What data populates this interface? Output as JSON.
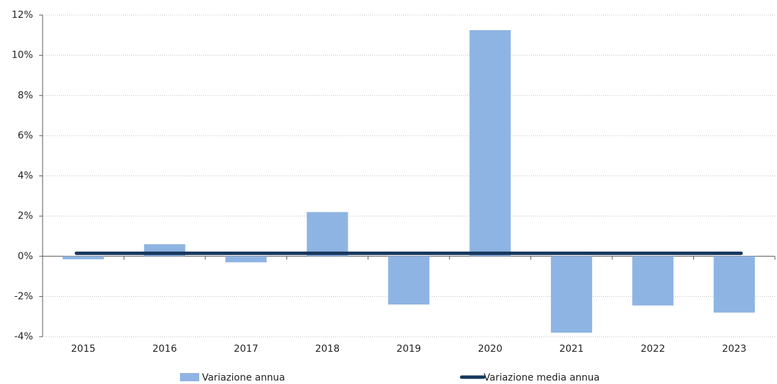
{
  "chart_data": {
    "type": "bar",
    "categories": [
      "2015",
      "2016",
      "2017",
      "2018",
      "2019",
      "2020",
      "2021",
      "2022",
      "2023"
    ],
    "series": [
      {
        "name": "Variazione annua",
        "color": "#8eb4e3",
        "values": [
          -0.15,
          0.6,
          -0.3,
          2.2,
          -2.4,
          11.25,
          -3.8,
          -2.45,
          -2.8
        ]
      },
      {
        "name": "Variazione media annua",
        "type": "line",
        "color": "#17375e",
        "values": [
          0.15,
          0.15,
          0.15,
          0.15,
          0.15,
          0.15,
          0.15,
          0.15,
          0.15
        ]
      }
    ],
    "ylim": [
      -4,
      12
    ],
    "yticks": [
      {
        "value": -4,
        "label": "-4%"
      },
      {
        "value": -2,
        "label": "-2%"
      },
      {
        "value": 0,
        "label": "0%"
      },
      {
        "value": 2,
        "label": "2%"
      },
      {
        "value": 4,
        "label": "4%"
      },
      {
        "value": 6,
        "label": "6%"
      },
      {
        "value": 8,
        "label": "8%"
      },
      {
        "value": 10,
        "label": "10%"
      },
      {
        "value": 12,
        "label": "12%"
      }
    ],
    "grid": true,
    "legend": "bottom"
  }
}
